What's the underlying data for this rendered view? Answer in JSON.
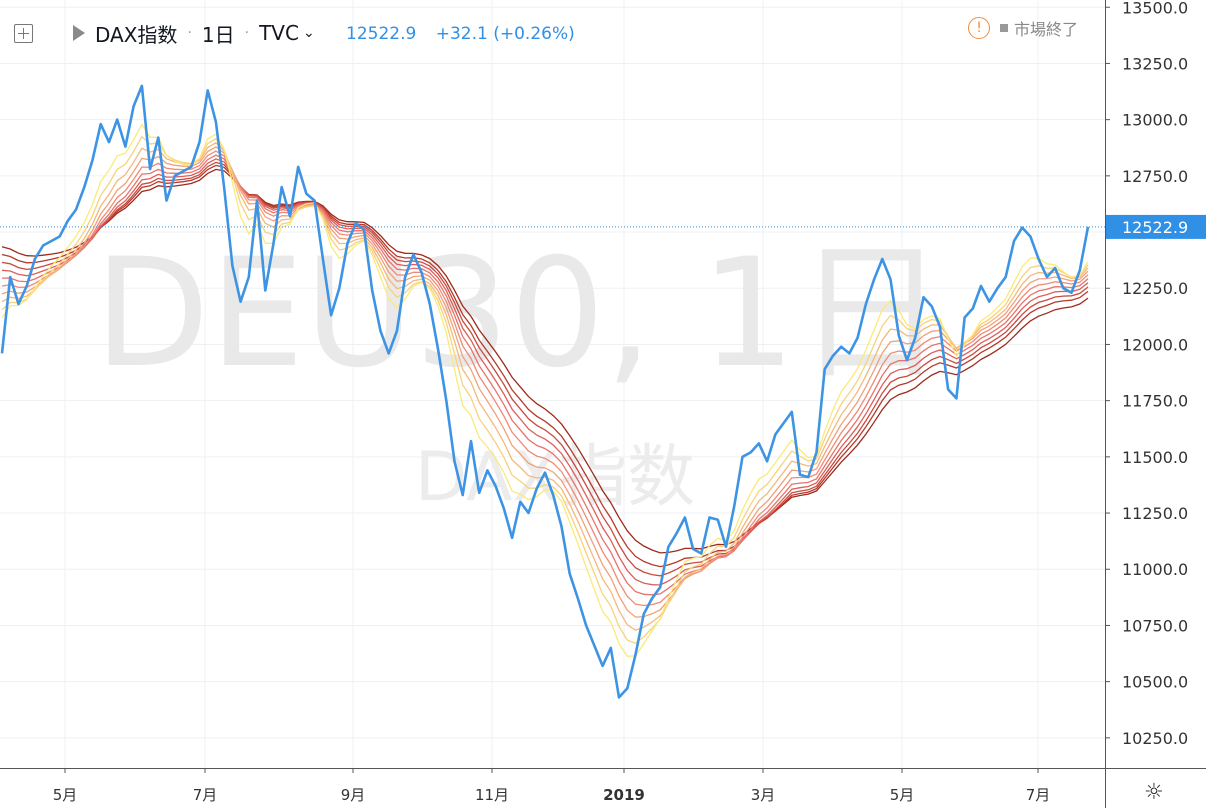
{
  "header": {
    "symbol_name": "DAX指数",
    "interval": "1日",
    "source": "TVC",
    "last_price": "12522.9",
    "change": "+32.1 (+0.26%)",
    "market_status": "市場終了"
  },
  "watermark": {
    "main": "DEU30, 1日",
    "sub": "DAX指数"
  },
  "price_label": "12522.9",
  "colors": {
    "price_line": "#3d94e4",
    "last_price_label_bg": "#2f90e6",
    "ribbon": [
      "#fbe97a",
      "#f8d27a",
      "#f5b87a",
      "#f2a079",
      "#ef8a75",
      "#e8736a",
      "#dc5f5a",
      "#c94a3f",
      "#b63a2b",
      "#9e2a1c"
    ]
  },
  "chart_data": {
    "type": "line",
    "title": "DAX指数",
    "x_ticks": [
      "5月",
      "7月",
      "9月",
      "11月",
      "2019",
      "3月",
      "5月",
      "7月"
    ],
    "y_ticks": [
      "10250.0",
      "10500.0",
      "10750.0",
      "11000.0",
      "11250.0",
      "11500.0",
      "11750.0",
      "12000.0",
      "12250.0",
      "12500.0",
      "12750.0",
      "13000.0",
      "13250.0",
      "13500.0"
    ],
    "ylim": [
      10080,
      13510
    ],
    "grid": true,
    "price_series": [
      [
        0,
        11960
      ],
      [
        2,
        12300
      ],
      [
        4,
        12180
      ],
      [
        6,
        12260
      ],
      [
        8,
        12380
      ],
      [
        10,
        12440
      ],
      [
        12,
        12460
      ],
      [
        14,
        12480
      ],
      [
        16,
        12550
      ],
      [
        18,
        12600
      ],
      [
        20,
        12700
      ],
      [
        22,
        12820
      ],
      [
        24,
        12980
      ],
      [
        26,
        12900
      ],
      [
        28,
        13000
      ],
      [
        30,
        12880
      ],
      [
        32,
        13060
      ],
      [
        34,
        13150
      ],
      [
        36,
        12780
      ],
      [
        38,
        12920
      ],
      [
        40,
        12640
      ],
      [
        42,
        12750
      ],
      [
        44,
        12770
      ],
      [
        46,
        12790
      ],
      [
        48,
        12900
      ],
      [
        50,
        13130
      ],
      [
        52,
        12990
      ],
      [
        54,
        12700
      ],
      [
        56,
        12350
      ],
      [
        58,
        12190
      ],
      [
        60,
        12300
      ],
      [
        62,
        12640
      ],
      [
        64,
        12240
      ],
      [
        66,
        12450
      ],
      [
        68,
        12700
      ],
      [
        70,
        12570
      ],
      [
        72,
        12790
      ],
      [
        74,
        12670
      ],
      [
        76,
        12640
      ],
      [
        78,
        12380
      ],
      [
        80,
        12130
      ],
      [
        82,
        12250
      ],
      [
        84,
        12450
      ],
      [
        86,
        12540
      ],
      [
        88,
        12510
      ],
      [
        90,
        12240
      ],
      [
        92,
        12060
      ],
      [
        94,
        11960
      ],
      [
        96,
        12060
      ],
      [
        98,
        12300
      ],
      [
        100,
        12400
      ],
      [
        102,
        12320
      ],
      [
        104,
        12180
      ],
      [
        106,
        11980
      ],
      [
        108,
        11750
      ],
      [
        110,
        11480
      ],
      [
        112,
        11330
      ],
      [
        114,
        11570
      ],
      [
        116,
        11340
      ],
      [
        118,
        11440
      ],
      [
        120,
        11370
      ],
      [
        122,
        11270
      ],
      [
        124,
        11140
      ],
      [
        126,
        11300
      ],
      [
        128,
        11250
      ],
      [
        130,
        11360
      ],
      [
        132,
        11430
      ],
      [
        134,
        11330
      ],
      [
        136,
        11190
      ],
      [
        138,
        10980
      ],
      [
        140,
        10870
      ],
      [
        142,
        10750
      ],
      [
        144,
        10660
      ],
      [
        146,
        10570
      ],
      [
        148,
        10650
      ],
      [
        150,
        10430
      ],
      [
        152,
        10470
      ],
      [
        154,
        10620
      ],
      [
        156,
        10800
      ],
      [
        158,
        10870
      ],
      [
        160,
        10920
      ],
      [
        162,
        11100
      ],
      [
        164,
        11160
      ],
      [
        166,
        11230
      ],
      [
        168,
        11090
      ],
      [
        170,
        11070
      ],
      [
        172,
        11230
      ],
      [
        174,
        11220
      ],
      [
        176,
        11100
      ],
      [
        178,
        11280
      ],
      [
        180,
        11500
      ],
      [
        182,
        11520
      ],
      [
        184,
        11560
      ],
      [
        186,
        11480
      ],
      [
        188,
        11600
      ],
      [
        190,
        11650
      ],
      [
        192,
        11700
      ],
      [
        194,
        11420
      ],
      [
        196,
        11410
      ],
      [
        198,
        11520
      ],
      [
        200,
        11890
      ],
      [
        202,
        11950
      ],
      [
        204,
        11990
      ],
      [
        206,
        11960
      ],
      [
        208,
        12030
      ],
      [
        210,
        12180
      ],
      [
        212,
        12290
      ],
      [
        214,
        12380
      ],
      [
        216,
        12290
      ],
      [
        218,
        12040
      ],
      [
        220,
        11930
      ],
      [
        222,
        12030
      ],
      [
        224,
        12210
      ],
      [
        226,
        12170
      ],
      [
        228,
        12080
      ],
      [
        230,
        11800
      ],
      [
        232,
        11760
      ],
      [
        234,
        12120
      ],
      [
        236,
        12160
      ],
      [
        238,
        12260
      ],
      [
        240,
        12190
      ],
      [
        242,
        12250
      ],
      [
        244,
        12300
      ],
      [
        246,
        12460
      ],
      [
        248,
        12520
      ],
      [
        250,
        12480
      ],
      [
        252,
        12380
      ],
      [
        254,
        12300
      ],
      [
        256,
        12340
      ],
      [
        258,
        12250
      ],
      [
        260,
        12230
      ],
      [
        262,
        12330
      ],
      [
        264,
        12522.9
      ]
    ]
  }
}
